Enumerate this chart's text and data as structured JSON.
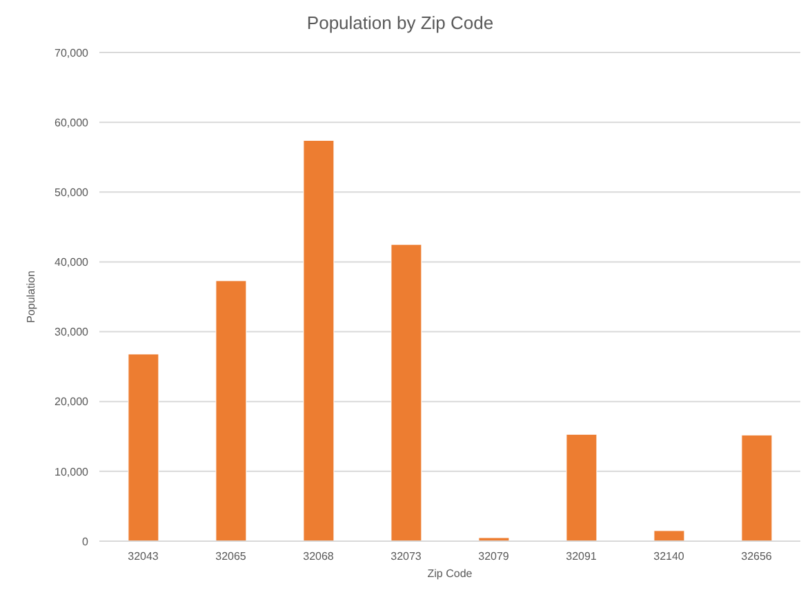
{
  "chart_data": {
    "type": "bar",
    "title": "Population by Zip Code",
    "xlabel": "Zip Code",
    "ylabel": "Population",
    "categories": [
      "32043",
      "32065",
      "32068",
      "32073",
      "32079",
      "32091",
      "32140",
      "32656"
    ],
    "values": [
      26800,
      37300,
      57400,
      42500,
      500,
      15300,
      1500,
      15200
    ],
    "color": "#ed7d31",
    "ylim": [
      0,
      70000
    ],
    "yticks": [
      {
        "value": 0,
        "label": "0"
      },
      {
        "value": 10000,
        "label": "10,000"
      },
      {
        "value": 20000,
        "label": "20,000"
      },
      {
        "value": 30000,
        "label": "30,000"
      },
      {
        "value": 40000,
        "label": "40,000"
      },
      {
        "value": 50000,
        "label": "50,000"
      },
      {
        "value": 60000,
        "label": "60,000"
      },
      {
        "value": 70000,
        "label": "70,000"
      }
    ],
    "grid": "y"
  }
}
